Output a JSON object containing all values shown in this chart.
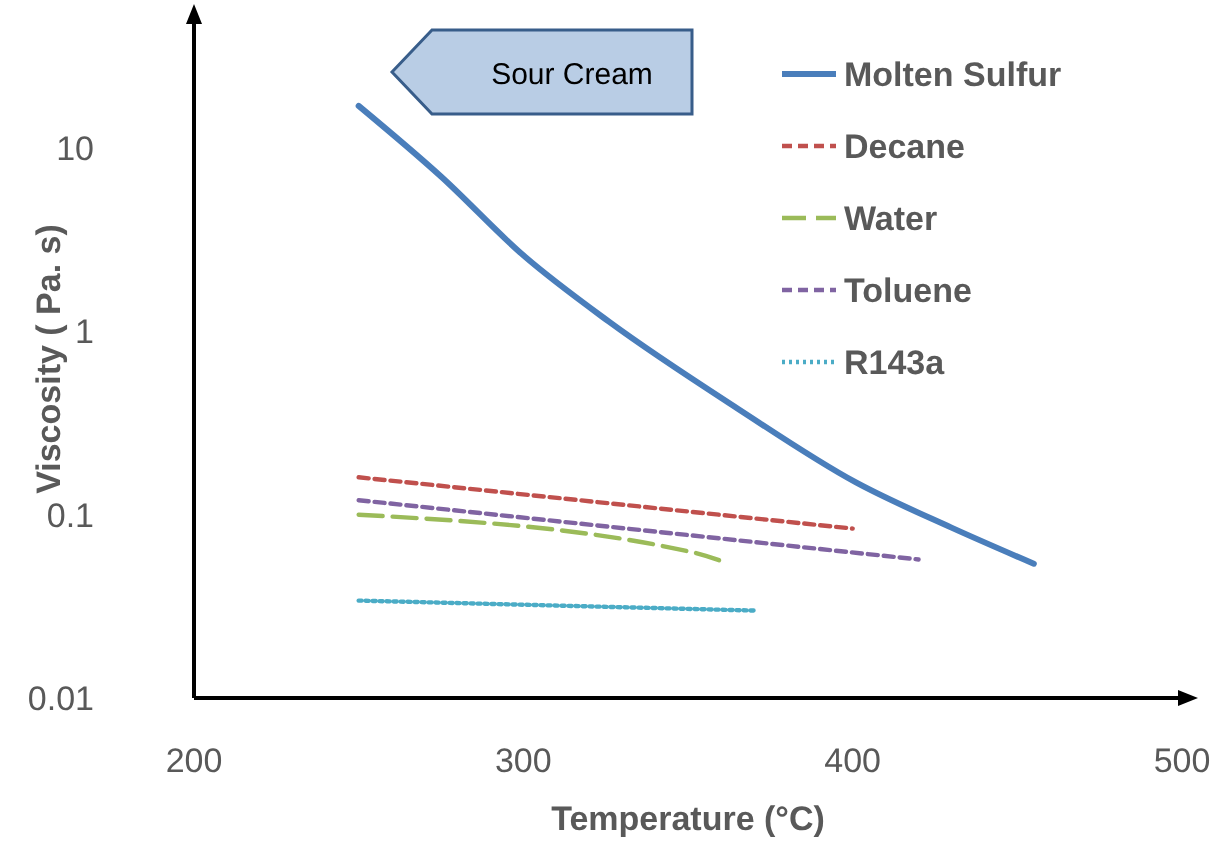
{
  "chart_data": {
    "type": "line",
    "xlabel": "Temperature (°C)",
    "ylabel": "Viscosity ( Pa. s)",
    "log": "y",
    "xlim": [
      200,
      500
    ],
    "xticks": [
      200,
      300,
      400,
      500
    ],
    "ylim": [
      0.01,
      50
    ],
    "yticks": [
      0.01,
      0.1,
      1,
      10
    ],
    "grid": false,
    "legend": "top right",
    "marker": "none",
    "annotations": [
      "Sour Cream"
    ],
    "series": [
      {
        "name": "Molten Sulfur",
        "color": "#4a7ebb",
        "line_style": "solid",
        "x": [
          250,
          275,
          300,
          326,
          365,
          401,
          430,
          455
        ],
        "values": [
          17,
          7,
          2.6,
          1.13,
          0.38,
          0.15,
          0.085,
          0.054
        ]
      },
      {
        "name": "Decane",
        "color": "#c0504d",
        "line_style": "dashed",
        "x": [
          250,
          400
        ],
        "values": [
          0.16,
          0.084
        ]
      },
      {
        "name": "Water",
        "color": "#9bbb59",
        "line_style": "longdash",
        "x": [
          250,
          352,
          360
        ],
        "values": [
          0.1,
          0.062,
          0.056
        ]
      },
      {
        "name": "Toluene",
        "color": "#8064a2",
        "line_style": "dashed",
        "x": [
          250,
          420
        ],
        "values": [
          0.12,
          0.057
        ]
      },
      {
        "name": "R143a",
        "color": "#4bacc6",
        "line_style": "dotted",
        "x": [
          250,
          370
        ],
        "values": [
          0.034,
          0.03
        ]
      }
    ]
  }
}
